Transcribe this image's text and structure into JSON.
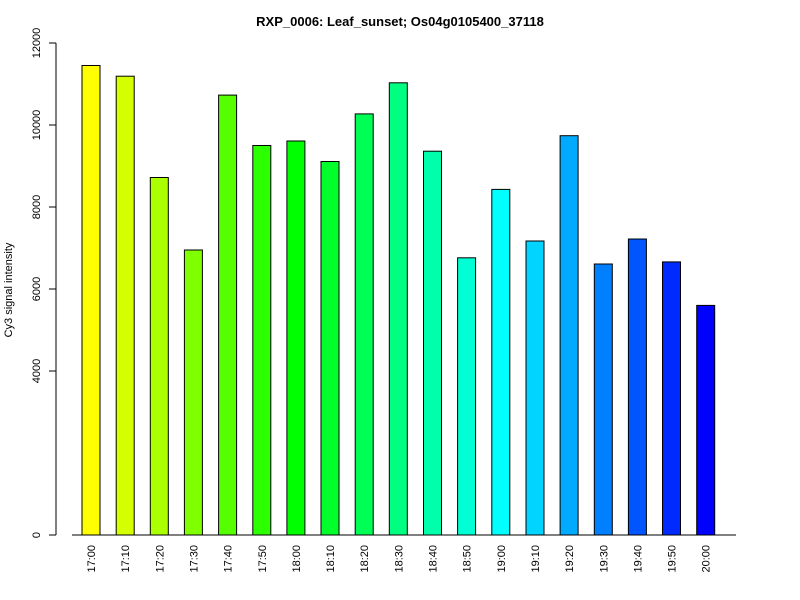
{
  "chart_data": {
    "type": "bar",
    "title": "RXP_0006: Leaf_sunset; Os04g0105400_37118",
    "xlabel": "",
    "ylabel": "Cy3 signal intensity",
    "categories": [
      "17:00",
      "17:10",
      "17:20",
      "17:30",
      "17:40",
      "17:50",
      "18:00",
      "18:10",
      "18:20",
      "18:30",
      "18:40",
      "18:50",
      "19:00",
      "19:10",
      "19:20",
      "19:30",
      "19:40",
      "19:50",
      "20:00"
    ],
    "values": [
      11450,
      11190,
      8720,
      6950,
      10730,
      9500,
      9610,
      9110,
      10270,
      11030,
      9360,
      6760,
      8430,
      7170,
      9740,
      6610,
      7220,
      6660,
      5600
    ],
    "colors": [
      "#FFFF00",
      "#D4FF00",
      "#AAFF00",
      "#80FF00",
      "#55FF00",
      "#2BFF00",
      "#00FF00",
      "#00FF2B",
      "#00FF55",
      "#00FF80",
      "#00FFAA",
      "#00FFD4",
      "#00FFFF",
      "#00D4FF",
      "#00AAFF",
      "#0080FF",
      "#0055FF",
      "#002BFF",
      "#0000FF"
    ],
    "yticks": [
      0,
      4000,
      6000,
      8000,
      10000,
      12000
    ],
    "ylim": [
      0,
      12000
    ],
    "grid": false,
    "legend": "none"
  }
}
